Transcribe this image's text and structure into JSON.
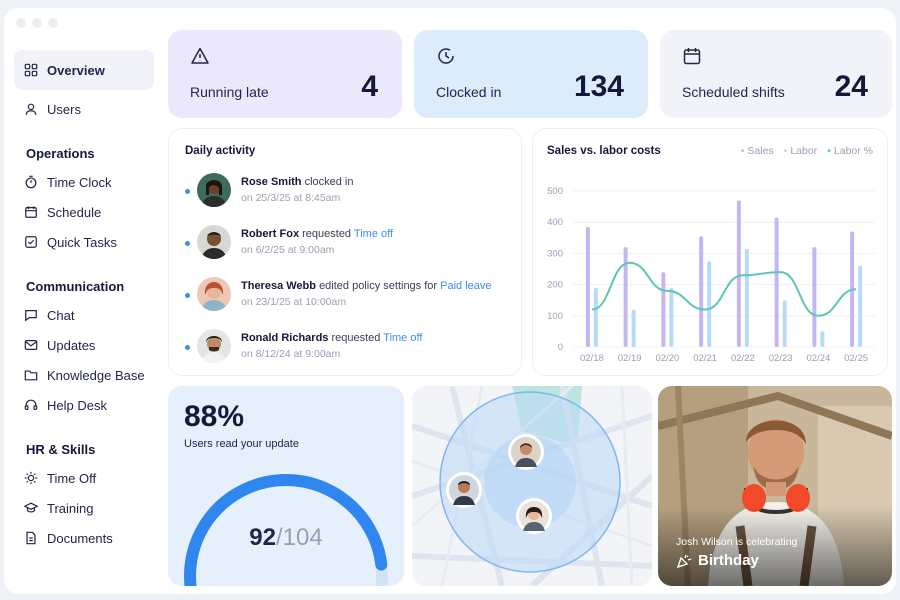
{
  "sidebar": {
    "top": [
      {
        "label": "Overview",
        "icon": "grid-icon"
      },
      {
        "label": "Users",
        "icon": "user-icon"
      }
    ],
    "sections": [
      {
        "title": "Operations",
        "items": [
          {
            "label": "Time Clock",
            "icon": "stopwatch-icon"
          },
          {
            "label": "Schedule",
            "icon": "calendar-icon"
          },
          {
            "label": "Quick Tasks",
            "icon": "checkbox-icon"
          }
        ]
      },
      {
        "title": "Communication",
        "items": [
          {
            "label": "Chat",
            "icon": "chat-icon"
          },
          {
            "label": "Updates",
            "icon": "mail-icon"
          },
          {
            "label": "Knowledge Base",
            "icon": "folder-icon"
          },
          {
            "label": "Help Desk",
            "icon": "headset-icon"
          }
        ]
      },
      {
        "title": "HR & Skills",
        "items": [
          {
            "label": "Time Off",
            "icon": "sun-icon"
          },
          {
            "label": "Training",
            "icon": "graduation-cap-icon"
          },
          {
            "label": "Documents",
            "icon": "document-icon"
          }
        ]
      }
    ]
  },
  "stats": [
    {
      "label": "Running late",
      "value": "4",
      "icon": "warning-icon",
      "color": "#ece8fb"
    },
    {
      "label": "Clocked in",
      "value": "134",
      "icon": "clock-icon",
      "color": "#dcecfb"
    },
    {
      "label": "Scheduled shifts",
      "value": "24",
      "icon": "calendar-icon",
      "color": "#f1f3f8"
    }
  ],
  "activity": {
    "title": "Daily activity",
    "items": [
      {
        "name": "Rose Smith",
        "action": "clocked in",
        "link": "",
        "date": "on 25/3/25 at 8:45am"
      },
      {
        "name": "Robert Fox",
        "action": "requested",
        "link": "Time off",
        "date": "on 6/2/25 at 9:00am"
      },
      {
        "name": "Theresa Webb",
        "action": "edited policy settings for",
        "link": "Paid leave",
        "date": "on 23/1/25 at 10:00am"
      },
      {
        "name": "Ronald Richards",
        "action": "requested",
        "link": "Time off",
        "date": "on 8/12/24 at 9:00am"
      }
    ]
  },
  "chart_data": {
    "type": "bar",
    "title": "Sales vs. labor costs",
    "categories": [
      "02/18",
      "02/19",
      "02/20",
      "02/21",
      "02/22",
      "02/23",
      "02/24",
      "02/25"
    ],
    "yticks": [
      0,
      100,
      200,
      300,
      400,
      500
    ],
    "ylim": [
      0,
      500
    ],
    "legend": [
      "Sales",
      "Labor",
      "Labor %"
    ],
    "legend_position": "top-right",
    "series": [
      {
        "name": "Sales",
        "values": [
          385,
          320,
          240,
          355,
          470,
          415,
          320,
          370
        ],
        "color": "#c3b6f2"
      },
      {
        "name": "Labor",
        "values": [
          190,
          120,
          190,
          275,
          315,
          150,
          50,
          260
        ],
        "color": "#b6dbf6"
      },
      {
        "name": "Labor %",
        "values": [
          120,
          270,
          180,
          120,
          230,
          240,
          100,
          185
        ],
        "color": "#5cc6b4"
      }
    ]
  },
  "update": {
    "percent": "88%",
    "label": "Users read your update",
    "read": "92",
    "total": "/104",
    "fraction": 0.885
  },
  "birthday": {
    "text": "Josh Wilson is celebrating",
    "title": "Birthday"
  }
}
